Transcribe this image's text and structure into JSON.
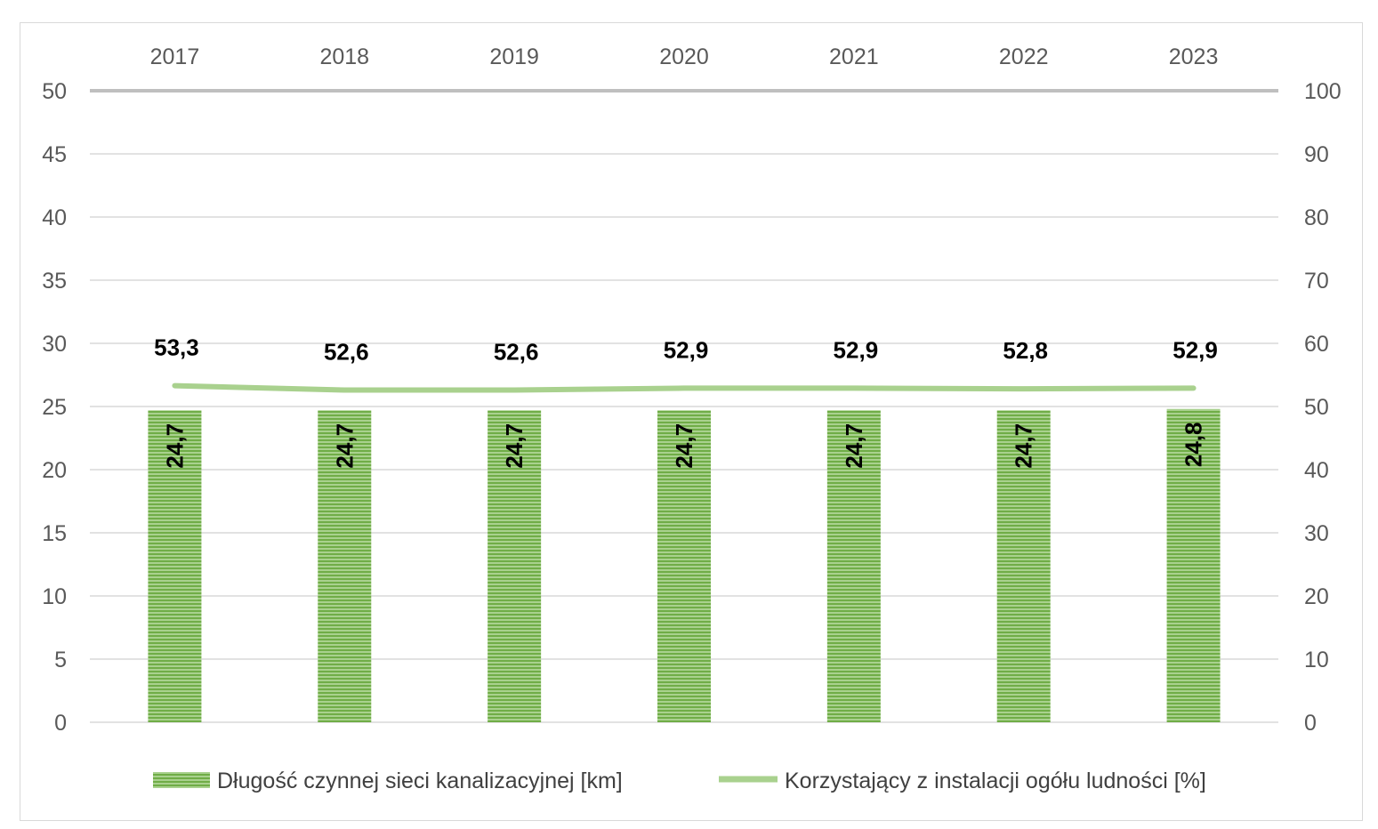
{
  "chart_data": {
    "type": "bar",
    "categories": [
      "2017",
      "2018",
      "2019",
      "2020",
      "2021",
      "2022",
      "2023"
    ],
    "series": [
      {
        "name": "Długość czynnej sieci kanalizacyjnej [km]",
        "type": "bar",
        "axis": "left",
        "values": [
          24.7,
          24.7,
          24.7,
          24.7,
          24.7,
          24.7,
          24.8
        ],
        "labels": [
          "24,7",
          "24,7",
          "24,7",
          "24,7",
          "24,7",
          "24,7",
          "24,8"
        ],
        "color": "#70ad47"
      },
      {
        "name": "Korzystający z instalacji ogółu ludności [%]",
        "type": "line",
        "axis": "right",
        "values": [
          53.3,
          52.6,
          52.6,
          52.9,
          52.9,
          52.8,
          52.9
        ],
        "labels": [
          "53,3",
          "52,6",
          "52,6",
          "52,9",
          "52,9",
          "52,8",
          "52,9"
        ],
        "color": "#a9d18e"
      }
    ],
    "y_left": {
      "min": 0,
      "max": 50,
      "step": 5,
      "ticks": [
        "0",
        "5",
        "10",
        "15",
        "20",
        "25",
        "30",
        "35",
        "40",
        "45",
        "50"
      ]
    },
    "y_right": {
      "min": 0,
      "max": 100,
      "step": 10,
      "ticks": [
        "0",
        "10",
        "20",
        "30",
        "40",
        "50",
        "60",
        "70",
        "80",
        "90",
        "100"
      ]
    },
    "x_axis_position": "top",
    "grid": true,
    "legend": "bottom"
  }
}
